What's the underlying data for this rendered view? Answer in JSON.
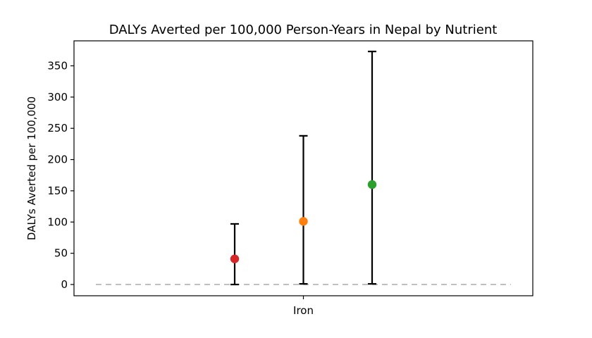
{
  "chart_data": {
    "type": "scatter",
    "title": "DALYs Averted per 100,000 Person-Years in Nepal by Nutrient",
    "xlabel": "",
    "ylabel": "DALYs Averted per 100,000",
    "categories": [
      "Iron"
    ],
    "ylim": [
      -18,
      390
    ],
    "yticks": [
      0,
      50,
      100,
      150,
      200,
      250,
      300,
      350
    ],
    "grid": false,
    "legend": "none",
    "zero_reference_line": {
      "value": 0,
      "color": "#c0c0c0",
      "style": "dashed"
    },
    "points": [
      {
        "category": "Iron",
        "offset": -0.25,
        "value": 41,
        "lower": 0,
        "upper": 97,
        "color": "#d62728"
      },
      {
        "category": "Iron",
        "offset": 0.0,
        "value": 101,
        "lower": 1,
        "upper": 238,
        "color": "#ff7f0e"
      },
      {
        "category": "Iron",
        "offset": 0.25,
        "value": 160,
        "lower": 1,
        "upper": 373,
        "color": "#2ca02c"
      }
    ]
  }
}
